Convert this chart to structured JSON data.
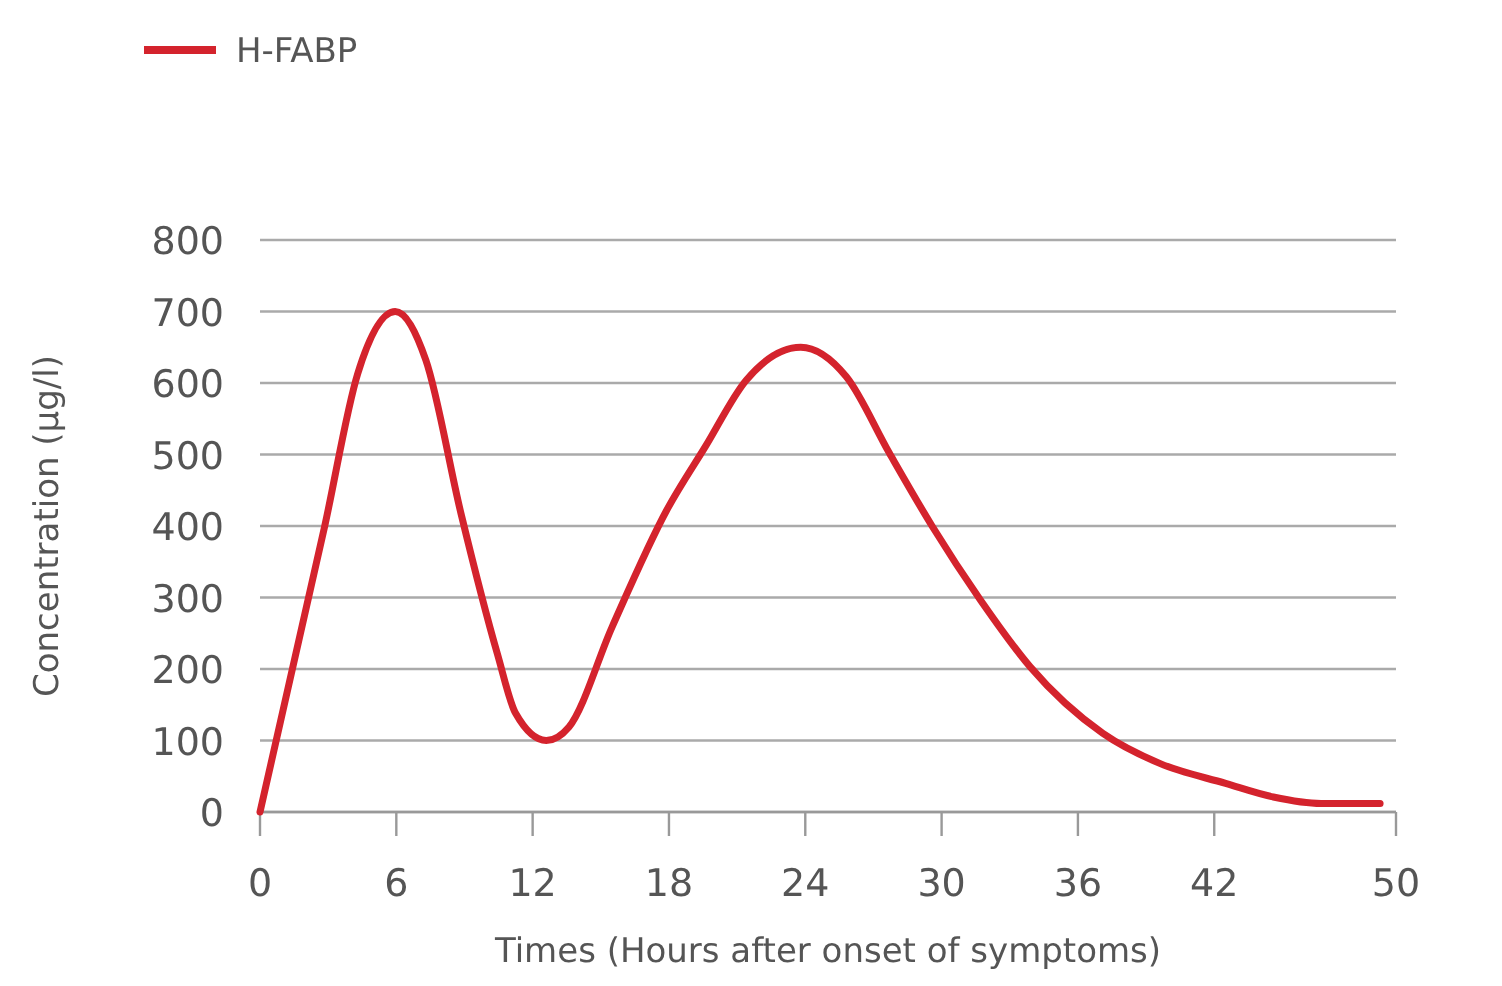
{
  "chart_data": {
    "type": "line",
    "xlabel": "Times (Hours after onset of symptoms)",
    "ylabel": "Concentration (µg/l)",
    "series": [
      {
        "name": "H-FABP",
        "color": "#d4232d",
        "x": [
          0,
          2.85,
          4.3,
          5.95,
          7.3,
          8.85,
          10.45,
          11.25,
          12.6,
          13.6,
          15.5,
          17.9,
          19.6,
          21.4,
          23.8,
          25.8,
          27.7,
          29.6,
          31.7,
          33.9,
          37.1,
          39.6,
          42.5,
          44.6,
          46.7,
          49.3
        ],
        "values": [
          0,
          400,
          613,
          700,
          632,
          417,
          221,
          138,
          100,
          119,
          259,
          422,
          511,
          604,
          650,
          609,
          502,
          399,
          297,
          203,
          110,
          68,
          40,
          21,
          12,
          12
        ]
      }
    ],
    "xlim": [
      0,
      50
    ],
    "xticks": [
      0,
      6,
      12,
      18,
      24,
      30,
      36,
      42,
      50
    ],
    "ylim": [
      0,
      800
    ],
    "yticks": [
      0,
      100,
      200,
      300,
      400,
      500,
      600,
      700,
      800
    ],
    "grid": "y",
    "legend": "top left",
    "marker": "none",
    "line_style": "solid"
  }
}
